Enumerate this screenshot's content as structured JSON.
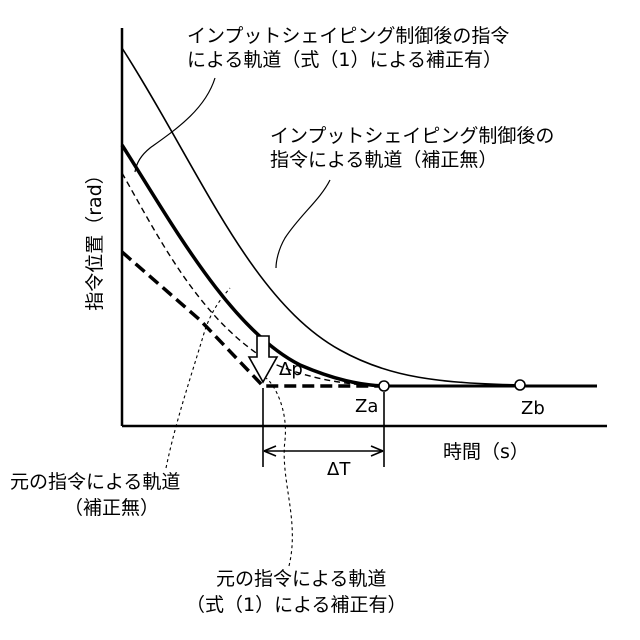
{
  "axes": {
    "y_label": "指令位置（rad）",
    "x_label": "時間（s）"
  },
  "points": {
    "za": "Za",
    "zb": "Zb"
  },
  "annotations": {
    "delta_p": "Δp",
    "delta_t": "ΔT"
  },
  "labels": {
    "shaped_corrected": [
      "インプットシェイピング制御後の指令",
      "による軌道（式（1）による補正有）"
    ],
    "shaped_uncorrected": [
      "インプットシェイピング制御後の",
      "指令による軌道（補正無）"
    ],
    "original_uncorrected": [
      "元の指令による軌道",
      "（補正無）"
    ],
    "original_corrected": [
      "元の指令による軌道",
      "（式（1）による補正有）"
    ]
  }
}
